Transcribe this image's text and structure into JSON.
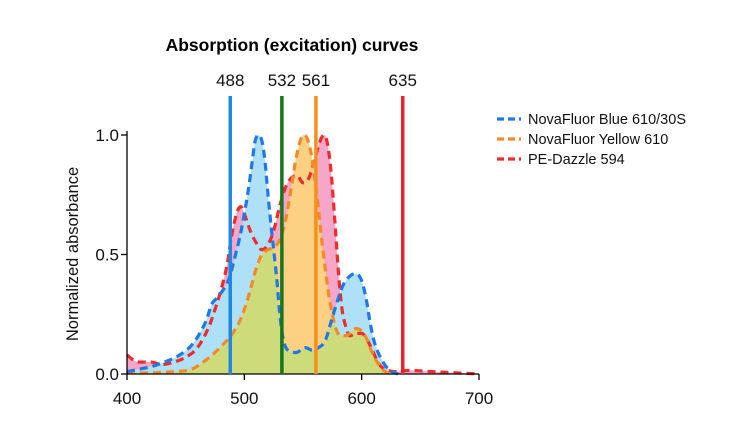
{
  "chart_data": {
    "type": "line",
    "title": "Absorption (excitation) curves",
    "ylabel": "Normalized absorbance",
    "xlim": [
      400,
      700
    ],
    "ylim": [
      0,
      1.0
    ],
    "xticks": [
      400,
      500,
      600,
      700
    ],
    "xtick_labels": [
      "400",
      "500",
      "600",
      "700"
    ],
    "yticks": [
      0,
      0.5,
      1.0
    ],
    "ytick_labels": [
      "0.0",
      "0.5",
      "1.0"
    ],
    "grid": false,
    "legend": "top-right",
    "laser_lines": [
      {
        "label": "488",
        "x": 488,
        "color": "#1e88e5"
      },
      {
        "label": "532",
        "x": 532,
        "color": "#17761d"
      },
      {
        "label": "561",
        "x": 561,
        "color": "#f5901e"
      },
      {
        "label": "635",
        "x": 635,
        "color": "#e8232b"
      }
    ],
    "series": [
      {
        "name": "NovaFluor Blue 610/30S",
        "color": "#1e78e6",
        "fill": "#aee0f7",
        "x": [
          400,
          410,
          420,
          432,
          445,
          455,
          462,
          468,
          472,
          477,
          483,
          487,
          492,
          496,
          500,
          504,
          507,
          509,
          512,
          514,
          516,
          518,
          520,
          523,
          525,
          528,
          530,
          533,
          537,
          544,
          552,
          558,
          563,
          569,
          574,
          579,
          584,
          590,
          595,
          600,
          604,
          607,
          611,
          616,
          621,
          626,
          631
        ],
        "y": [
          0.01,
          0.02,
          0.03,
          0.05,
          0.08,
          0.12,
          0.17,
          0.23,
          0.29,
          0.32,
          0.36,
          0.4,
          0.49,
          0.57,
          0.67,
          0.79,
          0.9,
          0.97,
          1.0,
          0.99,
          0.95,
          0.87,
          0.76,
          0.61,
          0.52,
          0.38,
          0.26,
          0.15,
          0.1,
          0.09,
          0.11,
          0.1,
          0.11,
          0.14,
          0.22,
          0.3,
          0.37,
          0.41,
          0.42,
          0.39,
          0.31,
          0.22,
          0.13,
          0.07,
          0.03,
          0.01,
          0.0
        ]
      },
      {
        "name": "NovaFluor Yellow 610",
        "color": "#f5892a",
        "fill": "#fdd184",
        "x": [
          400,
          420,
          440,
          455,
          465,
          475,
          485,
          490,
          495,
          500,
          505,
          510,
          515,
          520,
          525,
          530,
          535,
          540,
          544,
          548,
          551,
          554,
          557,
          560,
          563,
          566,
          569,
          572,
          575,
          578,
          582,
          586,
          590,
          595,
          600,
          604,
          608,
          612,
          616,
          620,
          625
        ],
        "y": [
          0.005,
          0.005,
          0.01,
          0.02,
          0.05,
          0.09,
          0.14,
          0.17,
          0.21,
          0.27,
          0.35,
          0.44,
          0.5,
          0.52,
          0.53,
          0.56,
          0.64,
          0.78,
          0.9,
          0.98,
          1.0,
          0.98,
          0.92,
          0.82,
          0.7,
          0.56,
          0.44,
          0.33,
          0.25,
          0.19,
          0.16,
          0.16,
          0.17,
          0.19,
          0.18,
          0.15,
          0.1,
          0.06,
          0.03,
          0.01,
          0.0
        ]
      },
      {
        "name": "PE-Dazzle 594",
        "color": "#ef2b2d",
        "fill": "#f6a6c9",
        "x": [
          400,
          405,
          410,
          420,
          430,
          440,
          450,
          460,
          470,
          475,
          480,
          485,
          490,
          494,
          497,
          500,
          505,
          510,
          515,
          520,
          525,
          530,
          535,
          540,
          545,
          550,
          555,
          560,
          565,
          568,
          571,
          574,
          577,
          580,
          583,
          587,
          590,
          595,
          600,
          605,
          610,
          615,
          620,
          630,
          640,
          660,
          680,
          700
        ],
        "y": [
          0.08,
          0.06,
          0.05,
          0.05,
          0.04,
          0.05,
          0.07,
          0.11,
          0.2,
          0.27,
          0.35,
          0.45,
          0.6,
          0.68,
          0.7,
          0.67,
          0.6,
          0.55,
          0.52,
          0.54,
          0.6,
          0.7,
          0.78,
          0.82,
          0.83,
          0.8,
          0.82,
          0.9,
          0.98,
          1.0,
          0.96,
          0.84,
          0.65,
          0.44,
          0.28,
          0.19,
          0.16,
          0.17,
          0.17,
          0.14,
          0.09,
          0.04,
          0.02,
          0.01,
          0.015,
          0.01,
          0.005,
          0.0
        ]
      }
    ],
    "overlap_fill": "#cddb7b"
  }
}
